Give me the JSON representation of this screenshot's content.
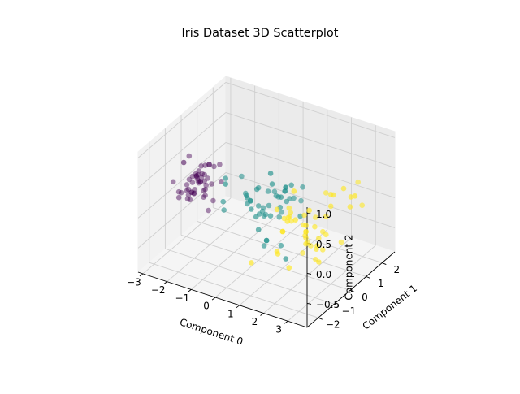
{
  "chart_data": {
    "type": "scatter",
    "projection": "3d",
    "title": "Iris Dataset 3D Scatterplot",
    "xlabel": "Component 0",
    "ylabel": "Component 1",
    "zlabel": "Component 2",
    "xlim": [
      -3.2,
      3.8
    ],
    "ylim": [
      -2.7,
      2.8
    ],
    "zlim": [
      -0.9,
      1.1
    ],
    "x_ticks": [
      -3,
      -2,
      -1,
      0,
      1,
      2,
      3
    ],
    "x_tick_labels": [
      "−3",
      "−2",
      "−1",
      "0",
      "1",
      "2",
      "3"
    ],
    "y_ticks": [
      -2,
      -1,
      0,
      1,
      2
    ],
    "y_tick_labels": [
      "−2",
      "−1",
      "0",
      "1",
      "2"
    ],
    "z_ticks": [
      -0.5,
      0.0,
      0.5,
      1.0
    ],
    "z_tick_labels": [
      "−0.5",
      "0.0",
      "0.5",
      "1.0"
    ],
    "grid": true,
    "legend": "none",
    "colors": [
      "#440154",
      "#21918c",
      "#fde725"
    ],
    "colormap": "viridis",
    "series": [
      {
        "color": "#440154",
        "points": [
          [
            -2.7,
            0.3,
            0.1
          ],
          [
            -2.7,
            -0.2,
            -0.2
          ],
          [
            -2.9,
            -0.1,
            -0.0
          ],
          [
            -2.7,
            -0.3,
            -0.1
          ],
          [
            -2.7,
            0.3,
            0.0
          ],
          [
            -2.3,
            0.7,
            0.2
          ],
          [
            -2.8,
            -0.1,
            0.1
          ],
          [
            -2.6,
            0.2,
            0.0
          ],
          [
            -2.9,
            -0.6,
            -0.1
          ],
          [
            -2.7,
            -0.1,
            -0.1
          ],
          [
            -2.5,
            0.6,
            0.0
          ],
          [
            -2.6,
            0.1,
            0.1
          ],
          [
            -2.8,
            -0.2,
            -0.2
          ],
          [
            -3.2,
            -0.5,
            0.1
          ],
          [
            -2.6,
            1.1,
            -0.5
          ],
          [
            -2.4,
            1.3,
            -0.2
          ],
          [
            -2.6,
            0.6,
            -0.2
          ],
          [
            -2.6,
            0.3,
            0.0
          ],
          [
            -2.2,
            0.9,
            0.2
          ],
          [
            -2.6,
            0.5,
            -0.2
          ],
          [
            -2.3,
            0.4,
            0.3
          ],
          [
            -2.5,
            0.4,
            -0.0
          ],
          [
            -3.2,
            0.5,
            0.3
          ],
          [
            -2.3,
            0.1,
            0.2
          ],
          [
            -2.4,
            0.1,
            0.2
          ],
          [
            -2.5,
            -0.1,
            0.2
          ],
          [
            -2.5,
            0.2,
            0.1
          ],
          [
            -2.6,
            0.3,
            -0.0
          ],
          [
            -2.6,
            0.2,
            0.2
          ],
          [
            -2.6,
            -0.2,
            0.1
          ],
          [
            -2.6,
            -0.2,
            0.2
          ],
          [
            -2.3,
            0.4,
            0.3
          ],
          [
            -2.8,
            0.8,
            -0.4
          ],
          [
            -2.6,
            1.0,
            -0.2
          ],
          [
            -2.7,
            -0.1,
            -0.1
          ],
          [
            -2.9,
            0.0,
            -0.1
          ],
          [
            -2.6,
            0.6,
            0.2
          ],
          [
            -3.0,
            0.5,
            -0.3
          ],
          [
            -3.0,
            -0.3,
            -0.1
          ],
          [
            -2.7,
            0.2,
            0.1
          ],
          [
            -2.8,
            0.3,
            0.1
          ],
          [
            -2.3,
            -1.2,
            0.7
          ],
          [
            -3.1,
            -0.3,
            -0.1
          ],
          [
            -2.3,
            0.2,
            -0.0
          ],
          [
            -2.4,
            0.5,
            -0.5
          ],
          [
            -2.6,
            -0.1,
            -0.1
          ],
          [
            -2.7,
            0.5,
            0.2
          ],
          [
            -2.9,
            -0.1,
            -0.1
          ],
          [
            -2.6,
            0.6,
            -0.3
          ],
          [
            -2.7,
            0.1,
            -0.1
          ]
        ]
      },
      {
        "color": "#21918c",
        "points": [
          [
            1.3,
            0.7,
            0.1
          ],
          [
            0.9,
            0.3,
            0.3
          ],
          [
            1.5,
            0.5,
            0.4
          ],
          [
            0.2,
            -0.8,
            0.3
          ],
          [
            1.1,
            0.1,
            0.2
          ],
          [
            0.6,
            -0.4,
            -0.4
          ],
          [
            1.1,
            0.3,
            0.2
          ],
          [
            -0.8,
            -1.0,
            0.2
          ],
          [
            1.0,
            0.2,
            0.4
          ],
          [
            -0.0,
            -0.7,
            0.2
          ],
          [
            -0.5,
            -1.3,
            0.6
          ],
          [
            0.5,
            -0.1,
            0.1
          ],
          [
            0.3,
            -0.6,
            0.0
          ],
          [
            0.9,
            -0.0,
            0.1
          ],
          [
            -0.5,
            -0.3,
            0.5
          ],
          [
            0.8,
            0.5,
            0.3
          ],
          [
            0.6,
            -0.4,
            -0.4
          ],
          [
            0.2,
            -0.3,
            0.4
          ],
          [
            0.9,
            -0.6,
            0.8
          ],
          [
            0.0,
            -0.5,
            0.2
          ],
          [
            1.0,
            -0.1,
            -0.5
          ],
          [
            0.4,
            -0.0,
            0.3
          ],
          [
            1.2,
            -0.4,
            0.4
          ],
          [
            0.8,
            -0.1,
            0.3
          ],
          [
            0.7,
            0.2,
            0.2
          ],
          [
            0.9,
            0.3,
            0.3
          ],
          [
            1.3,
            0.1,
            0.5
          ],
          [
            1.6,
            0.2,
            -0.0
          ],
          [
            0.7,
            -0.3,
            0.0
          ],
          [
            -0.2,
            -0.5,
            0.3
          ],
          [
            -0.0,
            -0.7,
            0.3
          ],
          [
            -0.1,
            -0.6,
            0.3
          ],
          [
            0.2,
            -0.3,
            0.1
          ],
          [
            1.4,
            -0.4,
            -0.6
          ],
          [
            0.5,
            -0.4,
            -0.5
          ],
          [
            0.7,
            0.4,
            -0.1
          ],
          [
            1.2,
            0.4,
            0.2
          ],
          [
            0.9,
            -0.5,
            0.6
          ],
          [
            0.2,
            -0.0,
            0.0
          ],
          [
            0.1,
            -0.6,
            0.1
          ],
          [
            0.4,
            -0.6,
            -0.2
          ],
          [
            0.8,
            0.1,
            -0.1
          ],
          [
            0.2,
            -0.4,
            0.4
          ],
          [
            -0.7,
            -1.0,
            0.6
          ],
          [
            0.3,
            -0.4,
            -0.0
          ],
          [
            0.3,
            -0.0,
            -0.1
          ],
          [
            0.3,
            -0.2,
            0.0
          ],
          [
            0.6,
            0.1,
            0.3
          ],
          [
            -0.9,
            -0.8,
            -0.0
          ],
          [
            0.3,
            -0.1,
            -0.1
          ]
        ]
      },
      {
        "color": "#fde725",
        "points": [
          [
            2.5,
            -0.0,
            -0.6
          ],
          [
            1.4,
            -0.6,
            -0.1
          ],
          [
            2.6,
            0.3,
            0.1
          ],
          [
            2.0,
            -0.1,
            -0.2
          ],
          [
            2.4,
            0.0,
            -0.4
          ],
          [
            3.4,
            0.6,
            0.3
          ],
          [
            0.5,
            -1.2,
            -0.6
          ],
          [
            2.9,
            0.3,
            0.5
          ],
          [
            2.3,
            -0.3,
            0.3
          ],
          [
            2.9,
            0.8,
            -0.4
          ],
          [
            1.7,
            0.2,
            -0.6
          ],
          [
            1.8,
            -0.4,
            0.1
          ],
          [
            2.2,
            0.2,
            -0.1
          ],
          [
            1.3,
            -0.8,
            -0.4
          ],
          [
            1.6,
            -0.5,
            -0.7
          ],
          [
            1.9,
            0.1,
            -0.4
          ],
          [
            1.9,
            0.0,
            0.1
          ],
          [
            3.5,
            1.2,
            0.2
          ],
          [
            3.8,
            0.3,
            0.6
          ],
          [
            1.3,
            -0.8,
            0.3
          ],
          [
            2.4,
            0.4,
            -0.2
          ],
          [
            1.2,
            -0.6,
            -0.5
          ],
          [
            3.5,
            0.5,
            0.5
          ],
          [
            1.4,
            -0.1,
            0.1
          ],
          [
            2.3,
            0.3,
            -0.3
          ],
          [
            2.6,
            0.6,
            0.4
          ],
          [
            1.3,
            -0.0,
            0.0
          ],
          [
            1.3,
            0.1,
            -0.1
          ],
          [
            2.1,
            -0.2,
            -0.0
          ],
          [
            2.4,
            0.6,
            0.4
          ],
          [
            2.8,
            0.3,
            0.3
          ],
          [
            3.2,
            1.4,
            0.5
          ],
          [
            2.1,
            -0.2,
            -0.1
          ],
          [
            1.4,
            -0.2,
            0.2
          ],
          [
            1.8,
            -0.5,
            0.6
          ],
          [
            3.2,
            0.5,
            0.6
          ],
          [
            2.1,
            0.4,
            -0.7
          ],
          [
            1.9,
            0.1,
            -0.2
          ],
          [
            1.2,
            -0.2,
            -0.0
          ],
          [
            2.1,
            0.4,
            -0.0
          ],
          [
            2.3,
            0.2,
            -0.4
          ],
          [
            1.9,
            0.4,
            -0.5
          ],
          [
            1.4,
            -0.6,
            -0.1
          ],
          [
            2.6,
            0.3,
            -0.2
          ],
          [
            2.4,
            0.4,
            -0.5
          ],
          [
            1.9,
            0.2,
            -0.4
          ],
          [
            1.5,
            -0.4,
            0.1
          ],
          [
            1.8,
            0.1,
            -0.1
          ],
          [
            1.9,
            0.1,
            -0.3
          ],
          [
            1.4,
            -0.3,
            0.0
          ]
        ]
      }
    ]
  }
}
